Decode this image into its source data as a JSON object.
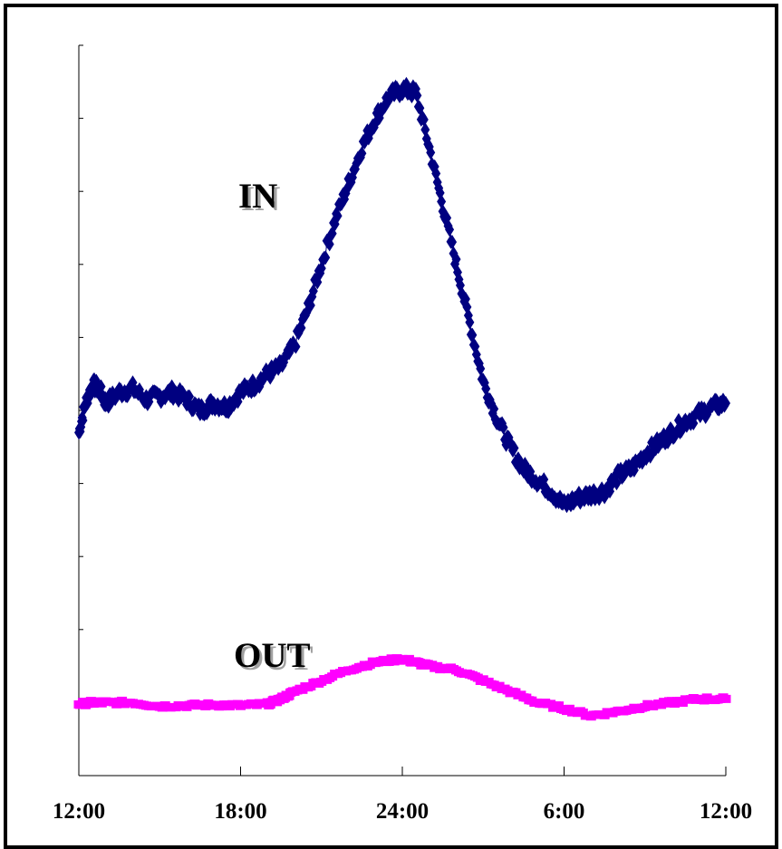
{
  "chart_data": {
    "type": "scatter",
    "title": "",
    "xlabel": "",
    "ylabel": "",
    "x_ticks": [
      "12:00",
      "18:00",
      "24:00",
      "6:00",
      "12:00"
    ],
    "x_tick_hours": [
      12,
      18,
      24,
      30,
      36
    ],
    "xlim": [
      12,
      36
    ],
    "y_tick_count": 10,
    "ylim": [
      0,
      10
    ],
    "grid": false,
    "legend": "none",
    "series": [
      {
        "name": "IN",
        "color": "#000080",
        "marker": "diamond",
        "x": [
          12.0,
          12.25,
          12.5,
          12.75,
          13.0,
          13.5,
          14.0,
          14.5,
          15.0,
          15.5,
          16.0,
          16.5,
          17.0,
          17.5,
          18.0,
          18.5,
          19.0,
          19.5,
          20.0,
          20.5,
          21.0,
          21.5,
          22.0,
          22.5,
          23.0,
          23.5,
          24.0,
          24.5,
          25.0,
          25.5,
          26.0,
          26.5,
          27.0,
          27.5,
          28.0,
          28.5,
          29.0,
          29.5,
          30.0,
          30.5,
          31.0,
          31.5,
          32.0,
          32.5,
          33.0,
          33.5,
          34.0,
          34.5,
          35.0,
          35.5,
          36.0
        ],
        "y": [
          4.7,
          5.1,
          5.35,
          5.3,
          5.1,
          5.25,
          5.3,
          5.15,
          5.2,
          5.25,
          5.15,
          5.0,
          5.1,
          5.05,
          5.25,
          5.35,
          5.5,
          5.6,
          5.9,
          6.4,
          7.0,
          7.6,
          8.1,
          8.6,
          9.0,
          9.3,
          9.4,
          9.35,
          8.6,
          7.8,
          7.0,
          6.2,
          5.4,
          4.9,
          4.5,
          4.2,
          4.05,
          3.9,
          3.7,
          3.8,
          3.85,
          3.9,
          4.1,
          4.2,
          4.4,
          4.55,
          4.7,
          4.85,
          4.95,
          5.05,
          5.1
        ]
      },
      {
        "name": "OUT",
        "color": "#ff00ff",
        "marker": "square",
        "x": [
          12.0,
          12.5,
          13.0,
          14.0,
          15.0,
          16.0,
          17.0,
          18.0,
          19.0,
          19.5,
          20.0,
          21.0,
          22.0,
          23.0,
          24.0,
          24.5,
          25.0,
          26.0,
          27.0,
          28.0,
          29.0,
          30.0,
          31.0,
          32.0,
          33.0,
          34.0,
          35.0,
          36.0
        ],
        "y": [
          0.98,
          1.0,
          1.0,
          1.0,
          0.95,
          0.96,
          0.97,
          0.96,
          0.98,
          1.05,
          1.15,
          1.3,
          1.45,
          1.55,
          1.6,
          1.55,
          1.5,
          1.45,
          1.3,
          1.15,
          1.0,
          0.92,
          0.82,
          0.88,
          0.95,
          1.0,
          1.05,
          1.05
        ]
      }
    ]
  }
}
